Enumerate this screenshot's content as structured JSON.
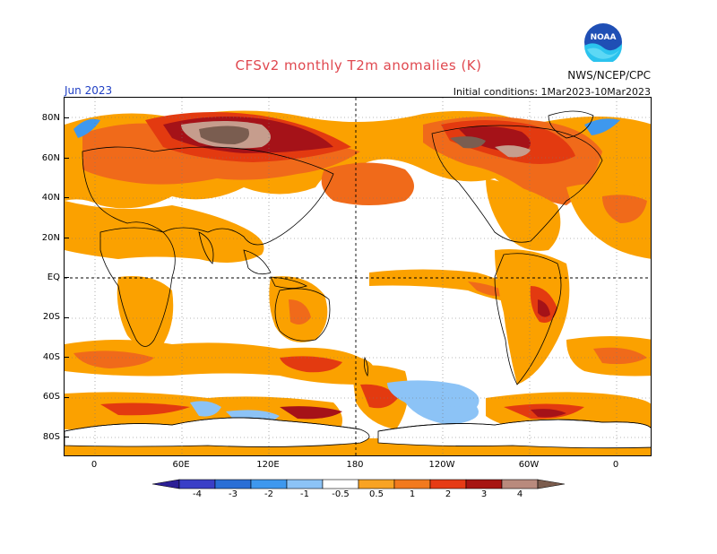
{
  "header": {
    "title": "CFSv2 monthly T2m anomalies (K)",
    "agency": "NWS/NCEP/CPC",
    "month": "Jun 2023",
    "initial_conditions": "Initial conditions: 1Mar2023-10Mar2023",
    "logo_text": "NOAA"
  },
  "axes": {
    "lat_labels": [
      "80N",
      "60N",
      "40N",
      "20N",
      "EQ",
      "20S",
      "40S",
      "60S",
      "80S"
    ],
    "lon_labels": [
      "0",
      "60E",
      "120E",
      "180",
      "120W",
      "60W",
      "0"
    ]
  },
  "colorbar": {
    "labels": [
      "-4",
      "-3",
      "-2",
      "-1",
      "-0.5",
      "0.5",
      "1",
      "2",
      "3",
      "4"
    ],
    "colors": [
      "#2c1f96",
      "#3a3fc7",
      "#2a6fd6",
      "#3e98ee",
      "#8cc3f6",
      "#ffffff",
      "#f8a323",
      "#f27a1e",
      "#e63b15",
      "#a71512",
      "#b98a7d",
      "#7b5c4d"
    ]
  },
  "palette": {
    "warm_light": "#fba100",
    "warm_mid": "#f06a1a",
    "warm_strong": "#e33a10",
    "warm_dark": "#a51218",
    "extreme_light": "#c69d8d",
    "extreme_dark": "#7a5d50",
    "cool_light": "#8cc3f6",
    "cool_mid": "#3e98ee"
  }
}
